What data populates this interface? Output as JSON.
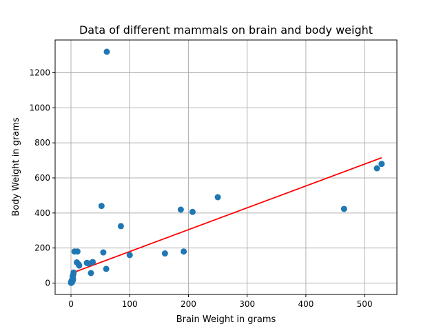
{
  "chart_data": {
    "type": "scatter",
    "title": "Data of different mammals on brain and body weight",
    "xlabel": "Brain Weight in grams",
    "ylabel": "Body Weight in grams",
    "xlim": [
      -27,
      555
    ],
    "ylim": [
      -65,
      1387
    ],
    "xticks": [
      0,
      100,
      200,
      300,
      400,
      500
    ],
    "yticks": [
      0,
      200,
      400,
      600,
      800,
      1000,
      1200
    ],
    "grid": true,
    "points": [
      {
        "x": 0.1,
        "y": 2
      },
      {
        "x": 0.5,
        "y": 5
      },
      {
        "x": 1.0,
        "y": 8
      },
      {
        "x": 0.2,
        "y": 1
      },
      {
        "x": 1.5,
        "y": 10
      },
      {
        "x": 2.0,
        "y": 6
      },
      {
        "x": 0.8,
        "y": 12
      },
      {
        "x": 3.0,
        "y": 15
      },
      {
        "x": 1.2,
        "y": 3
      },
      {
        "x": 2.5,
        "y": 20
      },
      {
        "x": 3.5,
        "y": 25
      },
      {
        "x": 4.0,
        "y": 50
      },
      {
        "x": 2.8,
        "y": 38
      },
      {
        "x": 4.5,
        "y": 60
      },
      {
        "x": 6.0,
        "y": 180
      },
      {
        "x": 11,
        "y": 180
      },
      {
        "x": 10,
        "y": 118
      },
      {
        "x": 13,
        "y": 107
      },
      {
        "x": 14,
        "y": 100
      },
      {
        "x": 27,
        "y": 115
      },
      {
        "x": 30,
        "y": 112
      },
      {
        "x": 37,
        "y": 120
      },
      {
        "x": 34,
        "y": 57
      },
      {
        "x": 52,
        "y": 440
      },
      {
        "x": 55,
        "y": 175
      },
      {
        "x": 60,
        "y": 81
      },
      {
        "x": 61,
        "y": 1320
      },
      {
        "x": 85,
        "y": 325
      },
      {
        "x": 100,
        "y": 160
      },
      {
        "x": 160,
        "y": 169
      },
      {
        "x": 187,
        "y": 419
      },
      {
        "x": 192,
        "y": 180
      },
      {
        "x": 207,
        "y": 406
      },
      {
        "x": 250,
        "y": 490
      },
      {
        "x": 465,
        "y": 423
      },
      {
        "x": 521,
        "y": 655
      },
      {
        "x": 529,
        "y": 680
      }
    ],
    "fit_line": {
      "x": [
        0,
        529
      ],
      "y": [
        55,
        715
      ]
    },
    "colors": {
      "points": "#1f77b4",
      "fit_line": "#ff0000",
      "grid": "#b0b0b0"
    }
  }
}
